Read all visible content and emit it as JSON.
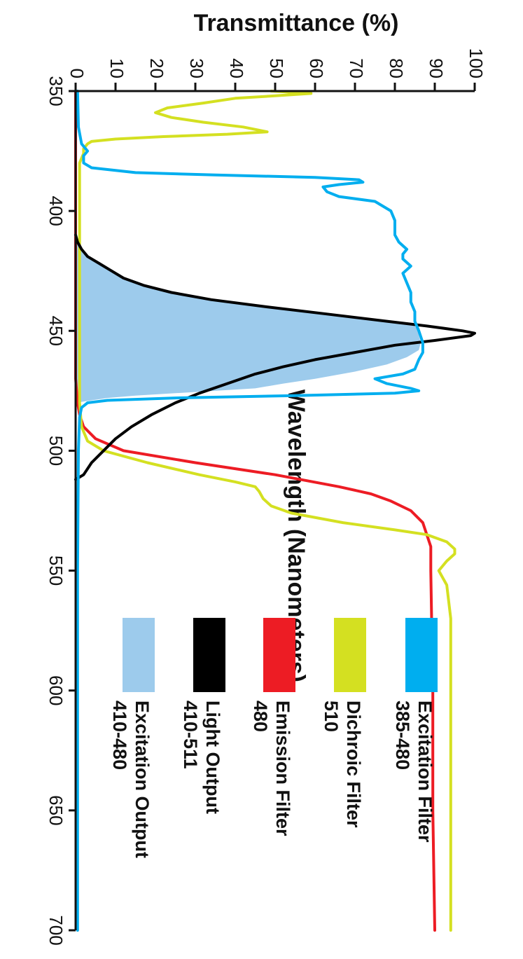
{
  "chart_data": {
    "type": "line",
    "orientation": "rotated-90-clockwise",
    "title": "",
    "xlabel": "Wavelength (Nanometers)",
    "ylabel": "Transmittance (%)",
    "xlim": [
      350,
      700
    ],
    "ylim": [
      0,
      100
    ],
    "x_ticks": [
      "350",
      "400",
      "450",
      "500",
      "550",
      "600",
      "650",
      "700"
    ],
    "y_ticks": [
      "0",
      "10",
      "20",
      "30",
      "40",
      "50",
      "60",
      "70",
      "80",
      "90",
      "100"
    ],
    "grid": false,
    "legend_position": "bottom-center",
    "series": [
      {
        "name": "Excitation Filter",
        "detail": "385-480",
        "color": "#00AEEF",
        "kind": "line",
        "points": [
          [
            350,
            0.5
          ],
          [
            365,
            0.7
          ],
          [
            372,
            1.5
          ],
          [
            375,
            3
          ],
          [
            377,
            2
          ],
          [
            380,
            2
          ],
          [
            382,
            4
          ],
          [
            384,
            15
          ],
          [
            385,
            35
          ],
          [
            386,
            60
          ],
          [
            387,
            71
          ],
          [
            388,
            72
          ],
          [
            389,
            66
          ],
          [
            390,
            62
          ],
          [
            392,
            63
          ],
          [
            394,
            66
          ],
          [
            396,
            75
          ],
          [
            400,
            79
          ],
          [
            404,
            80
          ],
          [
            410,
            80
          ],
          [
            413,
            81
          ],
          [
            416,
            83
          ],
          [
            418,
            82
          ],
          [
            420,
            82
          ],
          [
            423,
            84
          ],
          [
            426,
            82
          ],
          [
            430,
            83
          ],
          [
            434,
            84
          ],
          [
            438,
            84
          ],
          [
            442,
            85
          ],
          [
            446,
            85
          ],
          [
            450,
            86
          ],
          [
            455,
            87
          ],
          [
            459,
            87
          ],
          [
            462,
            86
          ],
          [
            466,
            85
          ],
          [
            468,
            82
          ],
          [
            470,
            75
          ],
          [
            472,
            78
          ],
          [
            474,
            84
          ],
          [
            475,
            86
          ],
          [
            476,
            80
          ],
          [
            477,
            55
          ],
          [
            478,
            25
          ],
          [
            479,
            8
          ],
          [
            480,
            3
          ],
          [
            482,
            1.5
          ],
          [
            486,
            1
          ],
          [
            500,
            0.7
          ],
          [
            550,
            0.5
          ],
          [
            650,
            0.5
          ],
          [
            700,
            0.5
          ]
        ]
      },
      {
        "name": "Dichroic Filter",
        "detail": "510",
        "color": "#D4E021",
        "kind": "line",
        "points": [
          [
            350,
            49
          ],
          [
            351,
            59
          ],
          [
            352,
            50
          ],
          [
            353,
            40
          ],
          [
            355,
            32
          ],
          [
            357,
            23
          ],
          [
            359,
            20
          ],
          [
            361,
            24
          ],
          [
            363,
            32
          ],
          [
            365,
            42
          ],
          [
            367,
            48
          ],
          [
            368,
            38
          ],
          [
            369,
            22
          ],
          [
            370,
            10
          ],
          [
            371,
            4
          ],
          [
            372,
            3
          ],
          [
            374,
            2
          ],
          [
            376,
            2
          ],
          [
            378,
            1.5
          ],
          [
            380,
            1
          ],
          [
            400,
            1
          ],
          [
            450,
            1
          ],
          [
            480,
            1
          ],
          [
            490,
            1.5
          ],
          [
            496,
            3
          ],
          [
            500,
            7
          ],
          [
            505,
            18
          ],
          [
            510,
            31
          ],
          [
            513,
            40
          ],
          [
            515,
            45
          ],
          [
            517,
            46
          ],
          [
            520,
            47
          ],
          [
            523,
            49
          ],
          [
            526,
            54
          ],
          [
            530,
            67
          ],
          [
            533,
            80
          ],
          [
            535,
            88
          ],
          [
            538,
            93
          ],
          [
            541,
            95
          ],
          [
            543,
            95
          ],
          [
            546,
            93
          ],
          [
            550,
            91
          ],
          [
            556,
            93
          ],
          [
            570,
            94
          ],
          [
            590,
            94
          ],
          [
            610,
            94
          ],
          [
            630,
            94
          ],
          [
            660,
            94
          ],
          [
            700,
            94
          ]
        ]
      },
      {
        "name": "Emission Filter",
        "detail": "480",
        "color": "#ED1C24",
        "kind": "line",
        "points": [
          [
            350,
            0
          ],
          [
            380,
            0
          ],
          [
            420,
            0
          ],
          [
            470,
            0
          ],
          [
            480,
            0.5
          ],
          [
            485,
            1
          ],
          [
            490,
            2
          ],
          [
            495,
            5
          ],
          [
            500,
            12
          ],
          [
            505,
            30
          ],
          [
            510,
            50
          ],
          [
            515,
            66
          ],
          [
            518,
            74
          ],
          [
            521,
            79
          ],
          [
            525,
            84
          ],
          [
            530,
            87
          ],
          [
            535,
            88
          ],
          [
            540,
            89
          ],
          [
            550,
            89
          ],
          [
            600,
            89.5
          ],
          [
            650,
            89.5
          ],
          [
            700,
            90
          ]
        ]
      },
      {
        "name": "Light Output",
        "detail": "410-511",
        "color": "#000000",
        "kind": "line",
        "points": [
          [
            410,
            0
          ],
          [
            413,
            0.5
          ],
          [
            416,
            1.5
          ],
          [
            419,
            3
          ],
          [
            422,
            6
          ],
          [
            425,
            9
          ],
          [
            428,
            12
          ],
          [
            431,
            17
          ],
          [
            434,
            24
          ],
          [
            437,
            34
          ],
          [
            440,
            48
          ],
          [
            443,
            63
          ],
          [
            446,
            78
          ],
          [
            448,
            88
          ],
          [
            450,
            97
          ],
          [
            451,
            100
          ],
          [
            452,
            99
          ],
          [
            454,
            90
          ],
          [
            456,
            80
          ],
          [
            459,
            70
          ],
          [
            462,
            60
          ],
          [
            465,
            52
          ],
          [
            468,
            45
          ],
          [
            472,
            38
          ],
          [
            476,
            31
          ],
          [
            480,
            25
          ],
          [
            485,
            19
          ],
          [
            490,
            14
          ],
          [
            495,
            10
          ],
          [
            500,
            7
          ],
          [
            505,
            4
          ],
          [
            510,
            2
          ],
          [
            512,
            0
          ]
        ]
      },
      {
        "name": "Excitation Output",
        "detail": "410-480",
        "color": "#9DCBEC",
        "kind": "area",
        "points": [
          [
            410,
            0
          ],
          [
            413,
            0.5
          ],
          [
            416,
            1.5
          ],
          [
            419,
            3
          ],
          [
            422,
            6
          ],
          [
            425,
            9
          ],
          [
            428,
            12
          ],
          [
            431,
            17
          ],
          [
            434,
            24
          ],
          [
            437,
            34
          ],
          [
            440,
            48
          ],
          [
            443,
            63
          ],
          [
            446,
            78
          ],
          [
            448,
            85
          ],
          [
            450,
            86
          ],
          [
            452,
            86
          ],
          [
            455,
            86.5
          ],
          [
            458,
            86
          ],
          [
            461,
            83
          ],
          [
            464,
            78
          ],
          [
            467,
            70
          ],
          [
            470,
            60
          ],
          [
            472,
            52
          ],
          [
            474,
            45
          ],
          [
            475,
            35
          ],
          [
            476,
            25
          ],
          [
            477,
            15
          ],
          [
            478,
            8
          ],
          [
            479,
            4
          ],
          [
            480,
            0
          ]
        ]
      }
    ]
  },
  "legend": [
    {
      "title": "Excitation Filter",
      "detail": "385-480",
      "color": "#00AEEF"
    },
    {
      "title": "Dichroic Filter",
      "detail": "510",
      "color": "#D4E021"
    },
    {
      "title": "Emission Filter",
      "detail": "480",
      "color": "#ED1C24"
    },
    {
      "title": "Light Output",
      "detail": "410-511",
      "color": "#000000"
    },
    {
      "title": "Excitation Output",
      "detail": "410-480",
      "color": "#9DCBEC"
    }
  ]
}
